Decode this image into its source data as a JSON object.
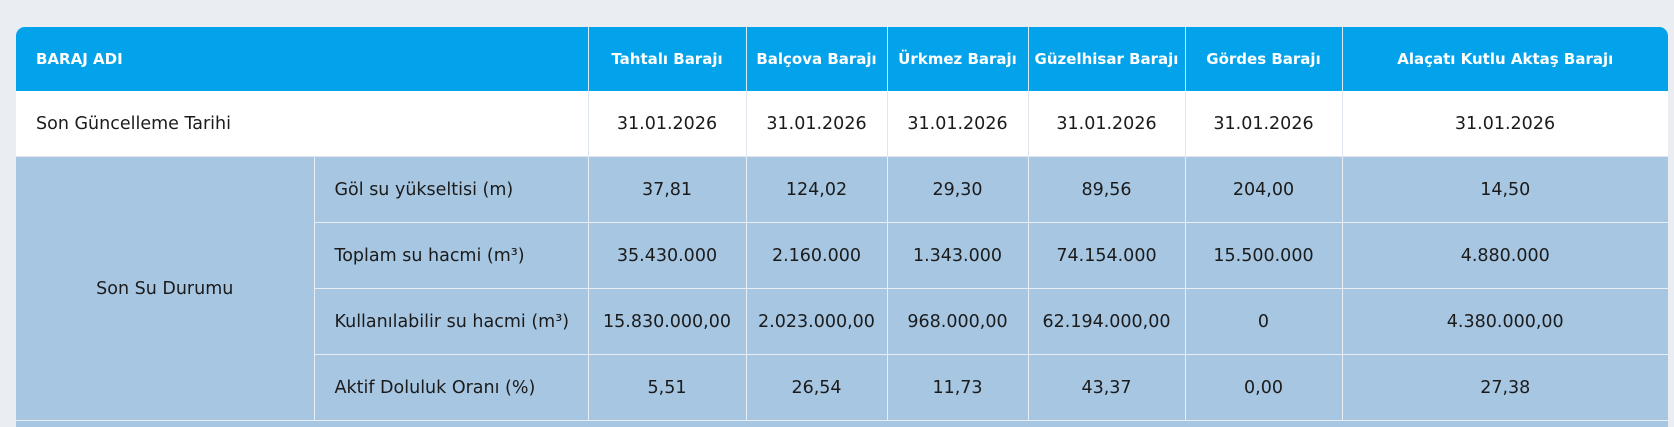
{
  "table": {
    "header_label": "BARAJ ADI",
    "dams": [
      "Tahtalı Barajı",
      "Balçova Barajı",
      "Ürkmez Barajı",
      "Güzelhisar Barajı",
      "Gördes Barajı",
      "Alaçatı Kutlu Aktaş Barajı"
    ],
    "update_row": {
      "label": "Son Güncelleme Tarihi",
      "values": [
        "31.01.2026",
        "31.01.2026",
        "31.01.2026",
        "31.01.2026",
        "31.01.2026",
        "31.01.2026"
      ]
    },
    "group_label": "Son Su Durumu",
    "rows": [
      {
        "label": "Göl su yükseltisi (m)",
        "values": [
          "37,81",
          "124,02",
          "29,30",
          "89,56",
          "204,00",
          "14,50"
        ]
      },
      {
        "label": "Toplam su hacmi (m³)",
        "values": [
          "35.430.000",
          "2.160.000",
          "1.343.000",
          "74.154.000",
          "15.500.000",
          "4.880.000"
        ]
      },
      {
        "label": "Kullanılabilir su hacmi (m³)",
        "values": [
          "15.830.000,00",
          "2.023.000,00",
          "968.000,00",
          "62.194.000,00",
          "0",
          "4.380.000,00"
        ]
      },
      {
        "label": "Aktif Doluluk Oranı (%)",
        "values": [
          "5,51",
          "26,54",
          "11,73",
          "43,37",
          "0,00",
          "27,38"
        ]
      }
    ]
  },
  "colors": {
    "header_bg": "#03a3ec",
    "body_bg": "#a6c6e2",
    "date_row_bg": "#ffffff",
    "page_bg": "#eaeef3"
  }
}
